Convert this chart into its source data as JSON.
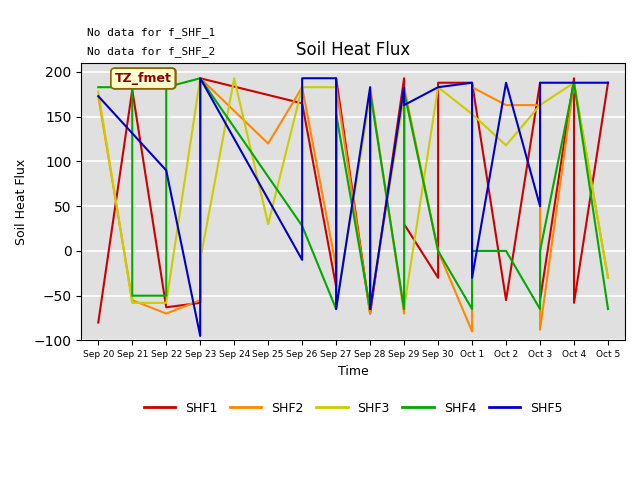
{
  "title": "Soil Heat Flux",
  "xlabel": "Time",
  "ylabel": "Soil Heat Flux",
  "ylim": [
    -100,
    210
  ],
  "yticks": [
    -100,
    -50,
    0,
    50,
    100,
    150,
    200
  ],
  "background_color": "#e0e0e0",
  "annotations": [
    "No data for f_SHF_1",
    "No data for f_SHF_2"
  ],
  "tz_label": "TZ_fmet",
  "series": {
    "SHF1": {
      "color": "#cc0000",
      "x": [
        0,
        1,
        2,
        3,
        3,
        6,
        7,
        7,
        8,
        9,
        9,
        10,
        10,
        11,
        12,
        13,
        13,
        14,
        14,
        15
      ],
      "values": [
        -80,
        180,
        -63,
        -58,
        193,
        165,
        -40,
        193,
        -70,
        193,
        30,
        -30,
        188,
        188,
        -55,
        188,
        -55,
        193,
        -58,
        188
      ]
    },
    "SHF2": {
      "color": "#ff8800",
      "x": [
        0,
        1,
        2,
        3,
        3,
        5,
        6,
        7,
        7,
        8,
        8,
        9,
        9,
        10,
        11,
        11,
        12,
        13,
        13,
        14,
        15
      ],
      "values": [
        173,
        -55,
        -70,
        -55,
        193,
        120,
        183,
        -18,
        183,
        -70,
        183,
        -70,
        183,
        0,
        -90,
        183,
        163,
        163,
        -88,
        188,
        -30
      ]
    },
    "SHF3": {
      "color": "#cccc00",
      "x": [
        0,
        1,
        2,
        3,
        3,
        4,
        5,
        6,
        7,
        7,
        8,
        8,
        9,
        9,
        10,
        11,
        12,
        13,
        14,
        15
      ],
      "values": [
        178,
        -58,
        -58,
        193,
        -10,
        193,
        30,
        183,
        183,
        -63,
        173,
        -63,
        173,
        -63,
        183,
        153,
        118,
        163,
        188,
        -30
      ]
    },
    "SHF4": {
      "color": "#00aa00",
      "x": [
        0,
        1,
        1,
        2,
        2,
        3,
        6,
        7,
        7,
        8,
        8,
        9,
        9,
        10,
        11,
        11,
        12,
        13,
        13,
        14,
        15
      ],
      "values": [
        183,
        183,
        -50,
        -50,
        183,
        193,
        28,
        -65,
        153,
        -65,
        178,
        -65,
        178,
        0,
        -65,
        0,
        0,
        -65,
        0,
        188,
        -65
      ]
    },
    "SHF5": {
      "color": "#0000cc",
      "x": [
        0,
        2,
        3,
        3,
        6,
        6,
        7,
        7,
        8,
        8,
        9,
        9,
        10,
        11,
        11,
        12,
        13,
        13,
        14,
        15
      ],
      "values": [
        173,
        90,
        -95,
        193,
        -10,
        193,
        193,
        -65,
        183,
        -65,
        183,
        163,
        183,
        188,
        -30,
        188,
        50,
        188,
        188,
        188
      ]
    }
  },
  "xtick_positions": [
    0,
    1,
    2,
    3,
    4,
    5,
    6,
    7,
    8,
    9,
    10,
    11,
    12,
    13,
    14,
    15
  ],
  "xtick_labels": [
    "Sep 20",
    "Sep 21",
    "Sep 22",
    "Sep 23",
    "Sep 24",
    "Sep 25",
    "Sep 26",
    "Sep 27",
    "Sep 28",
    "Sep 29",
    "Sep 30",
    "Oct 1",
    "Oct 2",
    "Oct 3",
    "Oct 4",
    "Oct 5"
  ]
}
